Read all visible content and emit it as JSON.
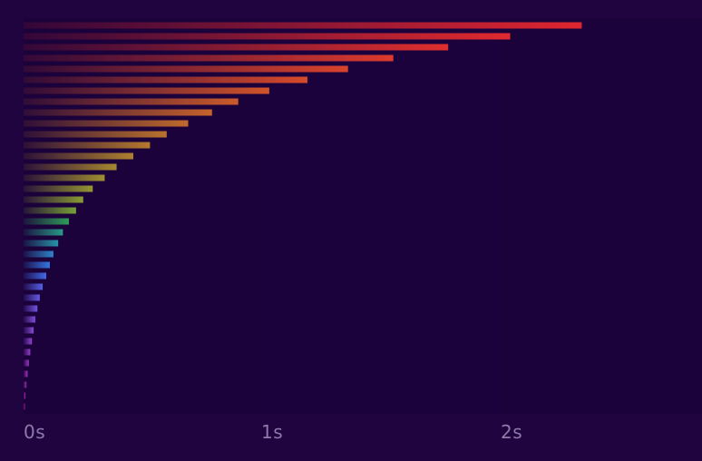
{
  "chart_data": {
    "type": "bar",
    "orientation": "horizontal",
    "title": "",
    "xlabel": "",
    "ylabel": "",
    "xlim": [
      0,
      2.8
    ],
    "x_ticks": [
      "0s",
      "1s",
      "2s"
    ],
    "x_tick_values": [
      0,
      1,
      2
    ],
    "grid": false,
    "legend": "none",
    "bars": [
      {
        "value": 2.34,
        "color": "#e0262f"
      },
      {
        "value": 2.04,
        "color": "#e02a2e"
      },
      {
        "value": 1.78,
        "color": "#df2f2d"
      },
      {
        "value": 1.55,
        "color": "#dd3a2c"
      },
      {
        "value": 1.36,
        "color": "#d9432b"
      },
      {
        "value": 1.19,
        "color": "#d54a2a"
      },
      {
        "value": 1.03,
        "color": "#d0532a"
      },
      {
        "value": 0.9,
        "color": "#cb5b2a"
      },
      {
        "value": 0.79,
        "color": "#c6632b"
      },
      {
        "value": 0.69,
        "color": "#c06b2c"
      },
      {
        "value": 0.6,
        "color": "#bb722d"
      },
      {
        "value": 0.53,
        "color": "#b57a2e"
      },
      {
        "value": 0.46,
        "color": "#ae812f"
      },
      {
        "value": 0.39,
        "color": "#a78830"
      },
      {
        "value": 0.34,
        "color": "#9f8f31"
      },
      {
        "value": 0.29,
        "color": "#959632"
      },
      {
        "value": 0.25,
        "color": "#8a9c33"
      },
      {
        "value": 0.22,
        "color": "#78a134"
      },
      {
        "value": 0.19,
        "color": "#2e9c59"
      },
      {
        "value": 0.165,
        "color": "#289a86"
      },
      {
        "value": 0.145,
        "color": "#2894a8"
      },
      {
        "value": 0.125,
        "color": "#2d85c9"
      },
      {
        "value": 0.11,
        "color": "#3477e0"
      },
      {
        "value": 0.095,
        "color": "#416ae6"
      },
      {
        "value": 0.08,
        "color": "#5560e6"
      },
      {
        "value": 0.068,
        "color": "#655ae4"
      },
      {
        "value": 0.058,
        "color": "#7254e0"
      },
      {
        "value": 0.049,
        "color": "#7d4fdc"
      },
      {
        "value": 0.042,
        "color": "#874ad8"
      },
      {
        "value": 0.035,
        "color": "#8f44d3"
      },
      {
        "value": 0.028,
        "color": "#963ece"
      },
      {
        "value": 0.022,
        "color": "#9c38c8"
      },
      {
        "value": 0.017,
        "color": "#a232c2"
      },
      {
        "value": 0.012,
        "color": "#a72cbb"
      },
      {
        "value": 0.008,
        "color": "#ab27b4"
      },
      {
        "value": 0.005,
        "color": "#ae22ad"
      }
    ]
  }
}
